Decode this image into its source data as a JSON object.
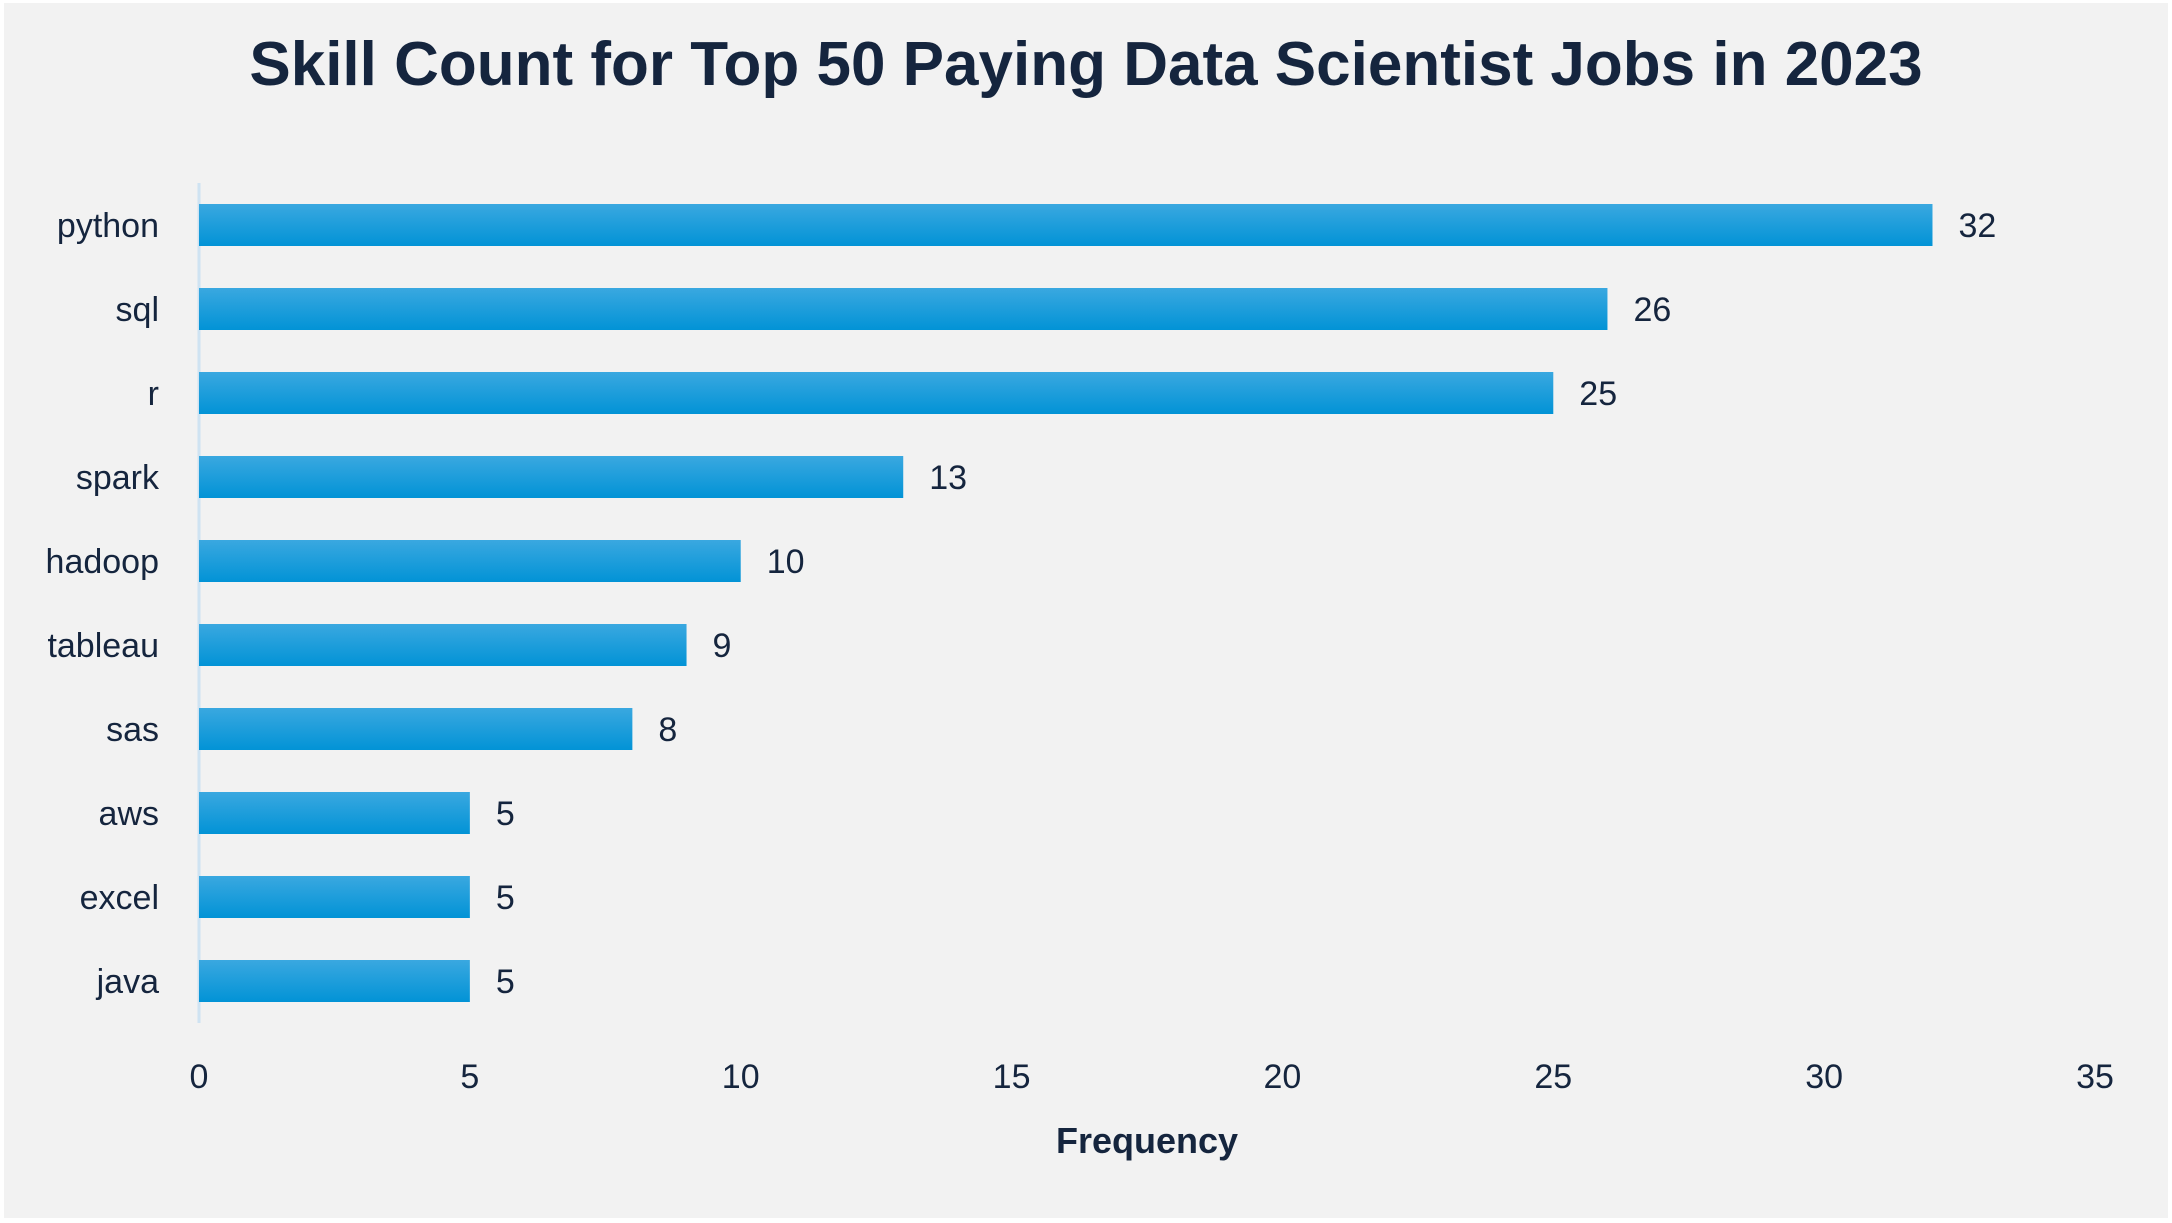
{
  "chart_data": {
    "type": "bar",
    "orientation": "horizontal",
    "title": "Skill Count for Top 50 Paying Data Scientist Jobs in 2023",
    "xlabel": "Frequency",
    "ylabel": "",
    "categories": [
      "python",
      "sql",
      "r",
      "spark",
      "hadoop",
      "tableau",
      "sas",
      "aws",
      "excel",
      "java"
    ],
    "values": [
      32,
      26,
      25,
      13,
      10,
      9,
      8,
      5,
      5,
      5
    ],
    "xlim": [
      0,
      35
    ],
    "xticks": [
      0,
      5,
      10,
      15,
      20,
      25,
      30,
      35
    ],
    "data_labels": true,
    "grid": false,
    "legend": "none",
    "colors": {
      "bar_top": "#3aa8e0",
      "bar_bottom": "#0293d6",
      "text": "#15253e",
      "axis_line": "#cfe3f2",
      "background": "#f2f2f2"
    }
  }
}
